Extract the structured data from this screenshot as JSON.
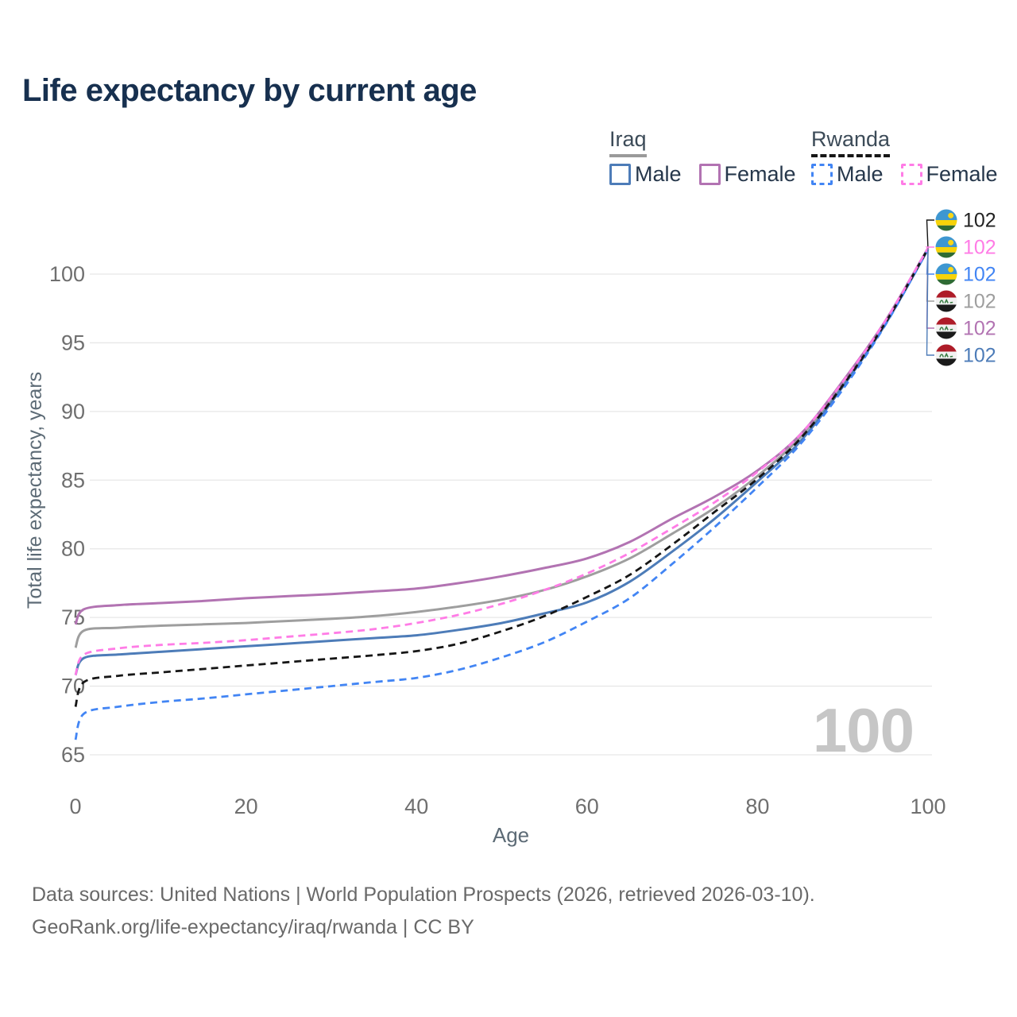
{
  "title": "Life expectancy by current age",
  "watermark": "100",
  "footer": {
    "line1": "Data sources: United Nations | World Population Prospects (2026, retrieved 2026-03-10).",
    "line2": "GeoRank.org/life-expectancy/iraq/rwanda | CC BY"
  },
  "legend": {
    "groups": [
      {
        "name": "Iraq",
        "line_style": "solid",
        "underline_color": "#9a9a9a",
        "items": [
          {
            "label": "Male",
            "color": "#4d7cb8"
          },
          {
            "label": "Female",
            "color": "#b273b2"
          }
        ]
      },
      {
        "name": "Rwanda",
        "line_style": "dashed",
        "underline_color": "#161616",
        "items": [
          {
            "label": "Male",
            "color": "#4285f4"
          },
          {
            "label": "Female",
            "color": "#ff7ce6"
          }
        ]
      }
    ]
  },
  "chart_data": {
    "type": "line",
    "title": "Life expectancy by current age",
    "xlabel": "Age",
    "ylabel": "Total life expectancy, years",
    "xlim": [
      0,
      100
    ],
    "ylim": [
      65,
      102
    ],
    "x_ticks": [
      0,
      20,
      40,
      60,
      80,
      100
    ],
    "y_ticks": [
      65,
      70,
      75,
      80,
      85,
      90,
      95,
      100
    ],
    "grid": "horizontal-only",
    "legend_position": "top-right",
    "ages": [
      0,
      1,
      5,
      10,
      15,
      20,
      25,
      30,
      35,
      40,
      45,
      50,
      55,
      60,
      65,
      70,
      75,
      80,
      85,
      90,
      95,
      100
    ],
    "series": [
      {
        "name": "Iraq",
        "role": "country-total",
        "country": "Iraq",
        "dash": "solid",
        "color": "#9e9e9e",
        "flag": "iraq",
        "end_label": "102",
        "end_row": 3,
        "values": [
          72.8,
          74.05,
          74.25,
          74.4,
          74.5,
          74.6,
          74.75,
          74.9,
          75.1,
          75.4,
          75.8,
          76.3,
          77.0,
          78.0,
          79.3,
          81.1,
          83.0,
          85.3,
          88.1,
          92.0,
          96.5,
          101.85
        ]
      },
      {
        "name": "Iraq Male",
        "role": "male",
        "country": "Iraq",
        "dash": "solid",
        "color": "#4d7cb8",
        "flag": "iraq",
        "end_label": "102",
        "end_row": 5,
        "values": [
          70.8,
          72.05,
          72.3,
          72.5,
          72.7,
          72.9,
          73.1,
          73.3,
          73.5,
          73.7,
          74.1,
          74.6,
          75.3,
          76.1,
          77.6,
          79.8,
          82.2,
          84.9,
          87.8,
          91.8,
          96.35,
          101.8
        ]
      },
      {
        "name": "Iraq Female",
        "role": "female",
        "country": "Iraq",
        "dash": "solid",
        "color": "#b273b2",
        "flag": "iraq",
        "end_label": "102",
        "end_row": 4,
        "values": [
          74.5,
          75.6,
          75.9,
          76.05,
          76.2,
          76.4,
          76.55,
          76.7,
          76.9,
          77.1,
          77.5,
          78.0,
          78.6,
          79.3,
          80.5,
          82.2,
          83.8,
          85.7,
          88.3,
          92.2,
          96.6,
          101.9
        ]
      },
      {
        "name": "Rwanda Male",
        "role": "male",
        "country": "Rwanda",
        "dash": "dashed",
        "color": "#4285f4",
        "flag": "rwanda",
        "end_label": "102",
        "end_row": 2,
        "values": [
          66.1,
          68.0,
          68.5,
          68.85,
          69.1,
          69.4,
          69.7,
          70.0,
          70.3,
          70.6,
          71.2,
          72.1,
          73.2,
          74.7,
          76.4,
          78.9,
          81.6,
          84.5,
          87.6,
          91.6,
          96.3,
          101.8
        ]
      },
      {
        "name": "Rwanda",
        "role": "country-total",
        "country": "Rwanda",
        "dash": "dashed",
        "color": "#161616",
        "flag": "rwanda",
        "end_label": "102",
        "end_row": 0,
        "values": [
          68.5,
          70.3,
          70.75,
          71.0,
          71.25,
          71.5,
          71.75,
          72.0,
          72.25,
          72.55,
          73.1,
          74.0,
          75.1,
          76.5,
          78.1,
          80.3,
          82.7,
          85.1,
          88.0,
          91.9,
          96.45,
          101.85
        ]
      },
      {
        "name": "Rwanda Female",
        "role": "female",
        "country": "Rwanda",
        "dash": "dashed",
        "color": "#ff7ce6",
        "flag": "rwanda",
        "end_label": "102",
        "end_row": 1,
        "values": [
          70.8,
          72.3,
          72.75,
          73.0,
          73.15,
          73.35,
          73.6,
          73.85,
          74.15,
          74.6,
          75.2,
          76.0,
          77.0,
          78.2,
          79.7,
          81.5,
          83.4,
          85.6,
          88.3,
          92.15,
          96.6,
          101.9
        ]
      }
    ],
    "colors": {
      "gridline": "#e7e7e7",
      "tick_text": "#6f6f6f",
      "axis_title": "#5d6b76",
      "title_text": "#17304f",
      "watermark": "#c6c6c6",
      "rwanda_flag": {
        "blue": "#3e97d1",
        "yellow": "#f7d308",
        "green": "#2f6b33",
        "sun": "#f9d616"
      },
      "iraq_flag": {
        "red": "#ae1c28",
        "white": "#f2f2f2",
        "black": "#1a1a1a",
        "script_green": "#3a7d44"
      }
    }
  }
}
